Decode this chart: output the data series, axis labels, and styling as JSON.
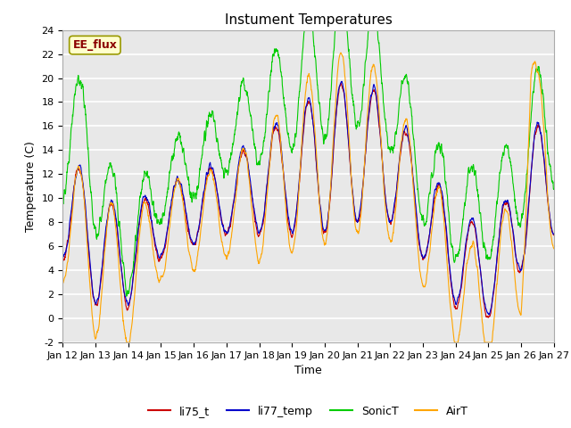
{
  "title": "Instument Temperatures",
  "xlabel": "Time",
  "ylabel": "Temperature (C)",
  "ylim": [
    -2,
    24
  ],
  "yticks": [
    -2,
    0,
    2,
    4,
    6,
    8,
    10,
    12,
    14,
    16,
    18,
    20,
    22,
    24
  ],
  "x_tick_labels": [
    "Jan 12",
    "Jan 13",
    "Jan 14",
    "Jan 15",
    "Jan 16",
    "Jan 17",
    "Jan 18",
    "Jan 19",
    "Jan 20",
    "Jan 21",
    "Jan 22",
    "Jan 23",
    "Jan 24",
    "Jan 25",
    "Jan 26",
    "Jan 27"
  ],
  "annotation_text": "EE_flux",
  "annotation_color": "#8B0000",
  "annotation_bg": "#FFFFCC",
  "line_colors": {
    "li75_t": "#CC0000",
    "li77_temp": "#0000CC",
    "SonicT": "#00CC00",
    "AirT": "#FFA500"
  },
  "background_color": "#FFFFFF",
  "plot_bg": "#E8E8E8",
  "grid_color": "#FFFFFF",
  "title_fontsize": 11,
  "axis_fontsize": 9,
  "tick_fontsize": 8
}
